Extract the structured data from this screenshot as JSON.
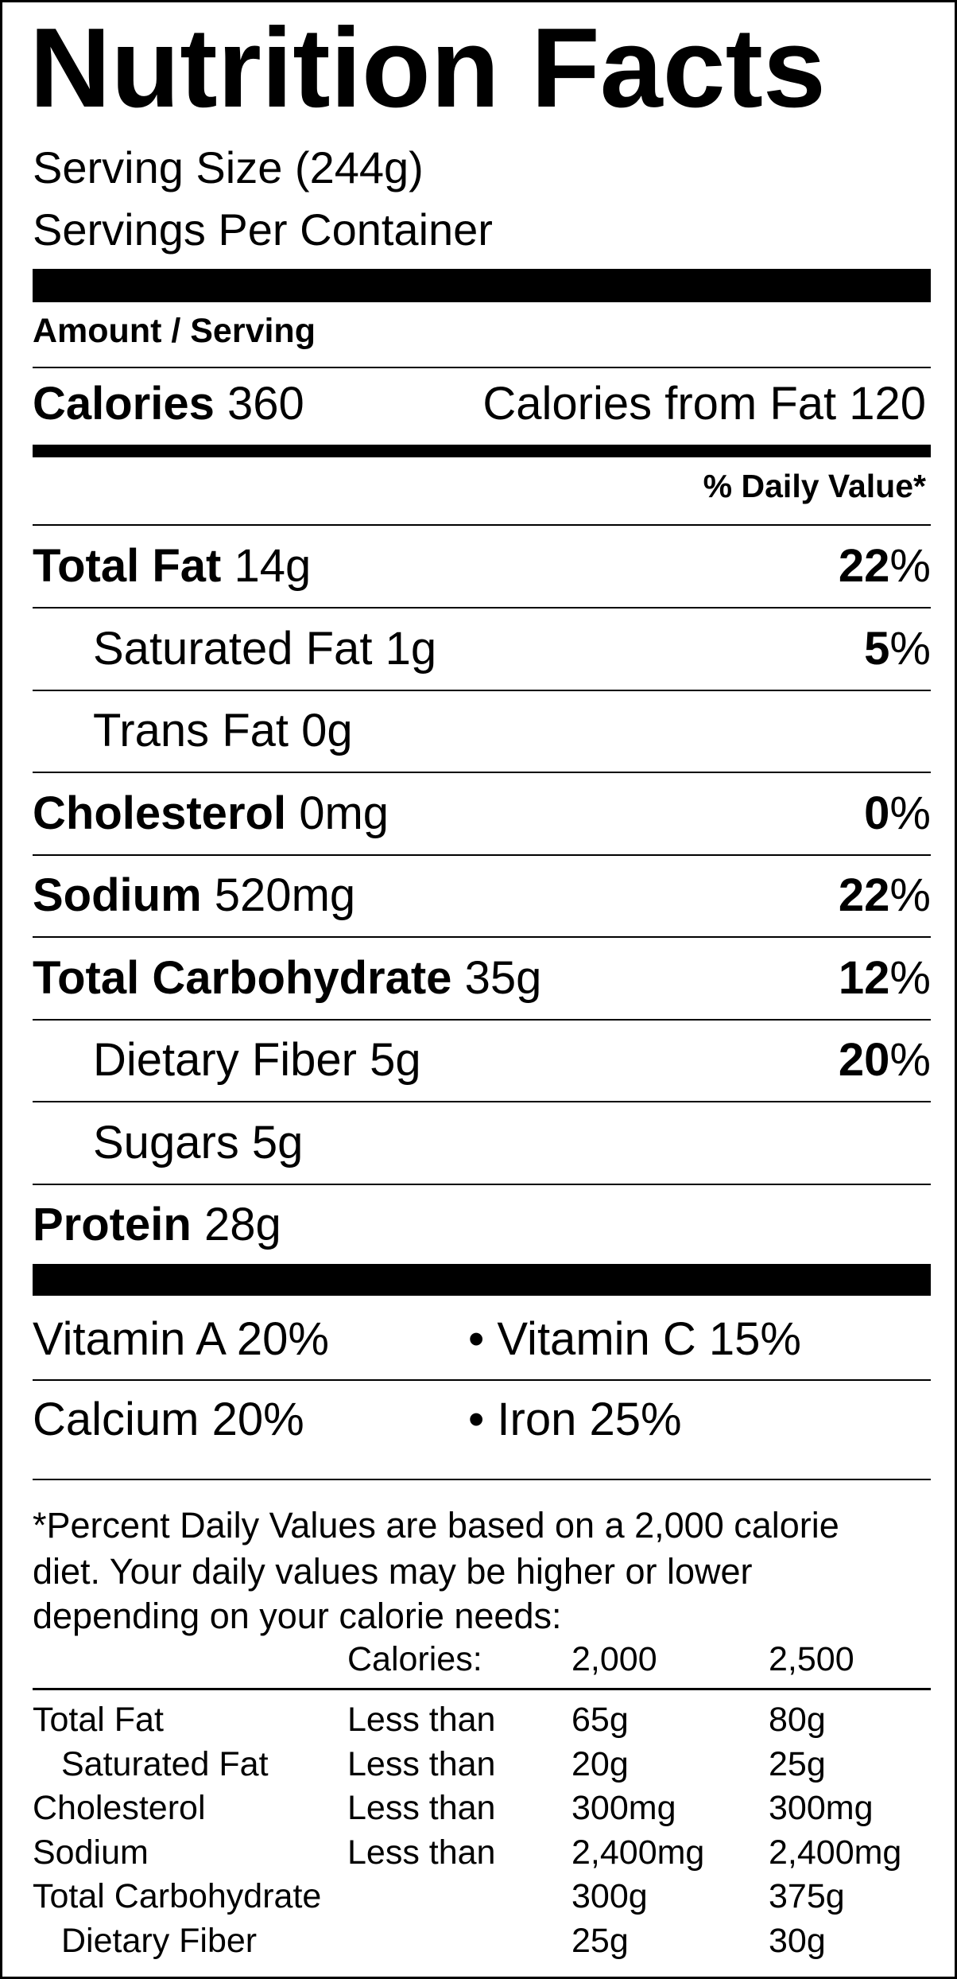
{
  "title": "Nutrition Facts",
  "serving_size": "Serving Size (244g)",
  "servings_per_container": "Servings Per Container",
  "amount_per_serving": "Amount / Serving",
  "calories": {
    "label": "Calories",
    "value": "360"
  },
  "calories_from_fat": "Calories from Fat 120",
  "daily_value_header": "% Daily Value*",
  "nutrients": [
    {
      "name": "Total Fat",
      "amount": "14g",
      "pct": "22",
      "indent": false
    },
    {
      "name": "Saturated Fat",
      "amount": "1g",
      "pct": "5",
      "indent": true
    },
    {
      "name": "Trans Fat",
      "amount": "0g",
      "pct": "",
      "indent": true
    },
    {
      "name": "Cholesterol",
      "amount": "0mg",
      "pct": "0",
      "indent": false
    },
    {
      "name": "Sodium",
      "amount": "520mg",
      "pct": "22",
      "indent": false
    },
    {
      "name": "Total Carbohydrate",
      "amount": "35g",
      "pct": "12",
      "indent": false
    },
    {
      "name": "Dietary Fiber",
      "amount": "5g",
      "pct": "20",
      "indent": true
    },
    {
      "name": "Sugars",
      "amount": "5g",
      "pct": "",
      "indent": true
    },
    {
      "name": "Protein",
      "amount": "28g",
      "pct": "",
      "indent": false
    }
  ],
  "vitamins": {
    "vitamin_a": "Vitamin A 20%",
    "vitamin_c": "• Vitamin C 15%",
    "calcium": "Calcium 20%",
    "iron": "• Iron 25%"
  },
  "footnote": {
    "line1": "*Percent Daily Values are based on a 2,000 calorie",
    "line2": "diet. Your daily values may be higher or lower",
    "line3": "depending on your calorie needs:"
  },
  "reference_table": {
    "header": {
      "label": "Calories:",
      "col1": "2,000",
      "col2": "2,500"
    },
    "rows": [
      {
        "name": "Total Fat",
        "qual": "Less than",
        "v1": "65g",
        "v2": "80g",
        "indent": false
      },
      {
        "name": "Saturated Fat",
        "qual": "Less than",
        "v1": "20g",
        "v2": "25g",
        "indent": true
      },
      {
        "name": "Cholesterol",
        "qual": "Less than",
        "v1": "300mg",
        "v2": "300mg",
        "indent": false
      },
      {
        "name": "Sodium",
        "qual": "Less than",
        "v1": "2,400mg",
        "v2": "2,400mg",
        "indent": false
      },
      {
        "name": "Total Carbohydrate",
        "qual": "",
        "v1": "300g",
        "v2": "375g",
        "indent": false
      },
      {
        "name": "Dietary Fiber",
        "qual": "",
        "v1": "25g",
        "v2": "30g",
        "indent": true
      }
    ]
  }
}
